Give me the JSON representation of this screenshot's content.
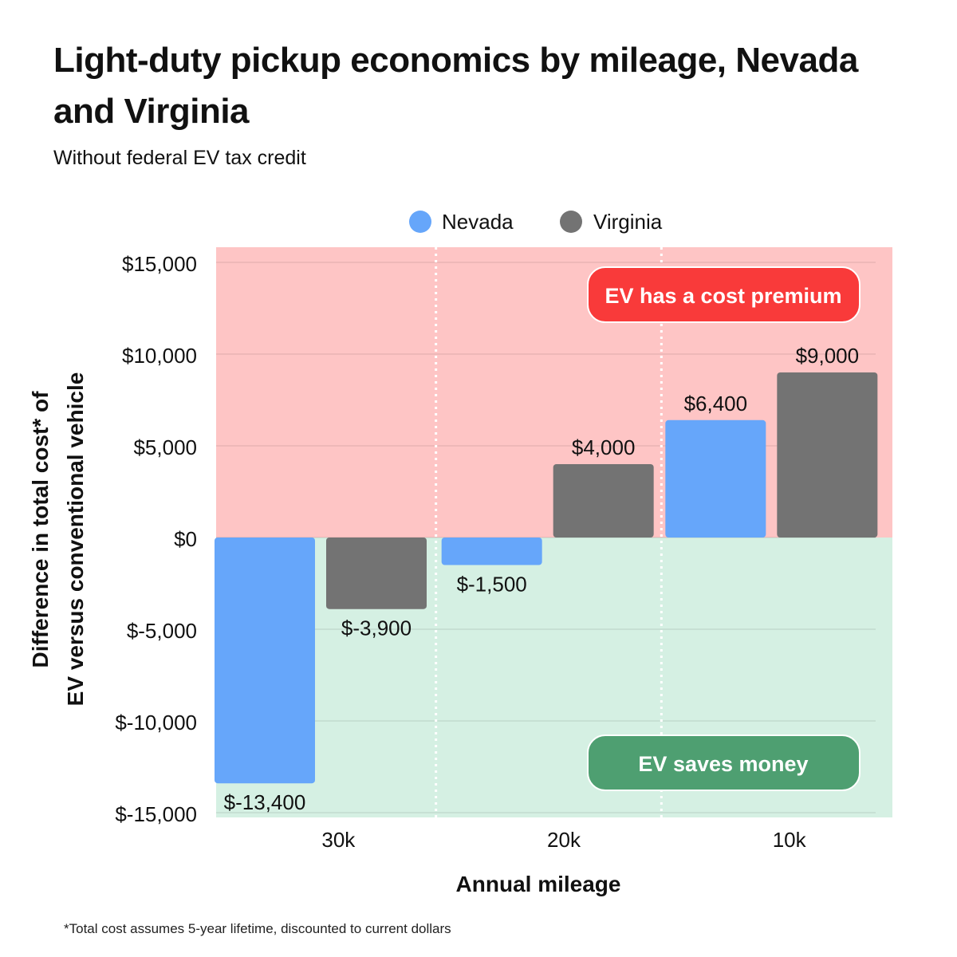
{
  "title": "Light-duty pickup economics by mileage, Nevada and Virginia",
  "subtitle": "Without federal EV tax credit",
  "footnote": "*Total cost assumes 5-year lifetime, discounted to current dollars",
  "chart_data": {
    "type": "bar",
    "categories": [
      "30k",
      "20k",
      "10k"
    ],
    "series": [
      {
        "name": "Nevada",
        "color": "#66a6fa",
        "values": [
          -13400,
          -1500,
          6400
        ],
        "labels": [
          "$-13,400",
          "$-1,500",
          "$6,400"
        ]
      },
      {
        "name": "Virginia",
        "color": "#737373",
        "values": [
          -3900,
          4000,
          9000
        ],
        "labels": [
          "$-3,900",
          "$4,000",
          "$9,000"
        ]
      }
    ],
    "xlabel": "Annual mileage",
    "ylabel_lines": [
      "Difference in total cost* of",
      "EV versus conventional vehicle"
    ],
    "ylim": [
      -15000,
      15000
    ],
    "yticks": [
      15000,
      10000,
      5000,
      0,
      -5000,
      -10000,
      -15000
    ],
    "ytick_labels": [
      "$15,000",
      "$10,000",
      "$5,000",
      "$0",
      "$-5,000",
      "$-10,000",
      "$-15,000"
    ],
    "grid": true,
    "legend_position": "top-center",
    "regions": {
      "positive": {
        "color": "#fec5c5",
        "badge": "EV has a cost premium",
        "badge_color": "#f93a3a"
      },
      "negative": {
        "color": "#d5f0e3",
        "badge": "EV saves money",
        "badge_color": "#4e9f71"
      }
    }
  }
}
